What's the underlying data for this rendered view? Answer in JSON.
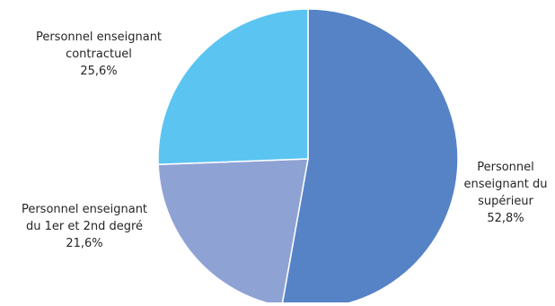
{
  "chart_data": {
    "type": "pie",
    "title": "",
    "start_angle_deg": 0,
    "direction": "clockwise",
    "slices": [
      {
        "label_lines": [
          "Personnel",
          "enseignant du",
          "supérieur"
        ],
        "value": 52.8,
        "value_label": "52,8%",
        "color": "#5683C6",
        "label_side": "right"
      },
      {
        "label_lines": [
          "Personnel enseignant",
          "du 1er et 2nd degré"
        ],
        "value": 21.6,
        "value_label": "21,6%",
        "color": "#8FA2D4",
        "label_side": "left"
      },
      {
        "label_lines": [
          "Personnel enseignant",
          "contractuel"
        ],
        "value": 25.6,
        "value_label": "25,6%",
        "color": "#5BC4F1",
        "label_side": "left"
      }
    ]
  }
}
